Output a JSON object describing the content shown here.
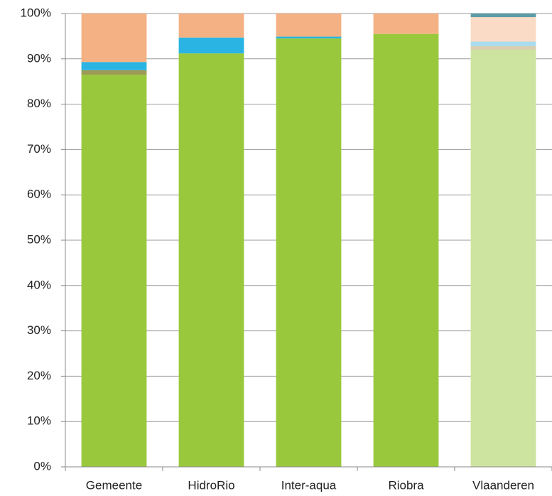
{
  "chart_data": {
    "type": "stacked_bar",
    "categories": [
      "Gemeente",
      "HidroRio",
      "Inter-aqua",
      "Riobra",
      "Vlaanderen"
    ],
    "series": [
      {
        "colors": [
          "#99c83c",
          "#99c83c",
          "#99c83c",
          "#99c83c",
          "#cde4a0"
        ],
        "values": [
          86.5,
          91.2,
          94.5,
          95.5,
          92.0
        ]
      },
      {
        "colors": [
          "#9c9a55",
          "#9c9a55",
          "#9c9a55",
          "#9c9a55",
          "#d9cfae"
        ],
        "values": [
          1.0,
          0,
          0,
          0,
          0.8
        ]
      },
      {
        "colors": [
          "#2ab4e4",
          "#2ab4e4",
          "#2ab4e4",
          "#2ab4e4",
          "#a9dcef"
        ],
        "values": [
          1.8,
          3.5,
          0.4,
          0,
          1.0
        ]
      },
      {
        "colors": [
          "#f4b183",
          "#f4b183",
          "#f4b183",
          "#f4b183",
          "#fadbc5"
        ],
        "values": [
          10.7,
          5.3,
          5.1,
          4.5,
          5.4
        ]
      },
      {
        "colors": [
          "#5b9ca6",
          "#5b9ca6",
          "#5b9ca6",
          "#5b9ca6",
          "#5b9ca6"
        ],
        "values": [
          0,
          0,
          0,
          0,
          0.8
        ]
      }
    ],
    "ylim": [
      0,
      100
    ],
    "yticks": [
      {
        "value": 0,
        "label": "0%"
      },
      {
        "value": 10,
        "label": "10%"
      },
      {
        "value": 20,
        "label": "20%"
      },
      {
        "value": 30,
        "label": "30%"
      },
      {
        "value": 40,
        "label": "40%"
      },
      {
        "value": 50,
        "label": "50%"
      },
      {
        "value": 60,
        "label": "60%"
      },
      {
        "value": 70,
        "label": "70%"
      },
      {
        "value": 80,
        "label": "80%"
      },
      {
        "value": 90,
        "label": "90%"
      },
      {
        "value": 100,
        "label": "100%"
      }
    ],
    "grid": true
  }
}
